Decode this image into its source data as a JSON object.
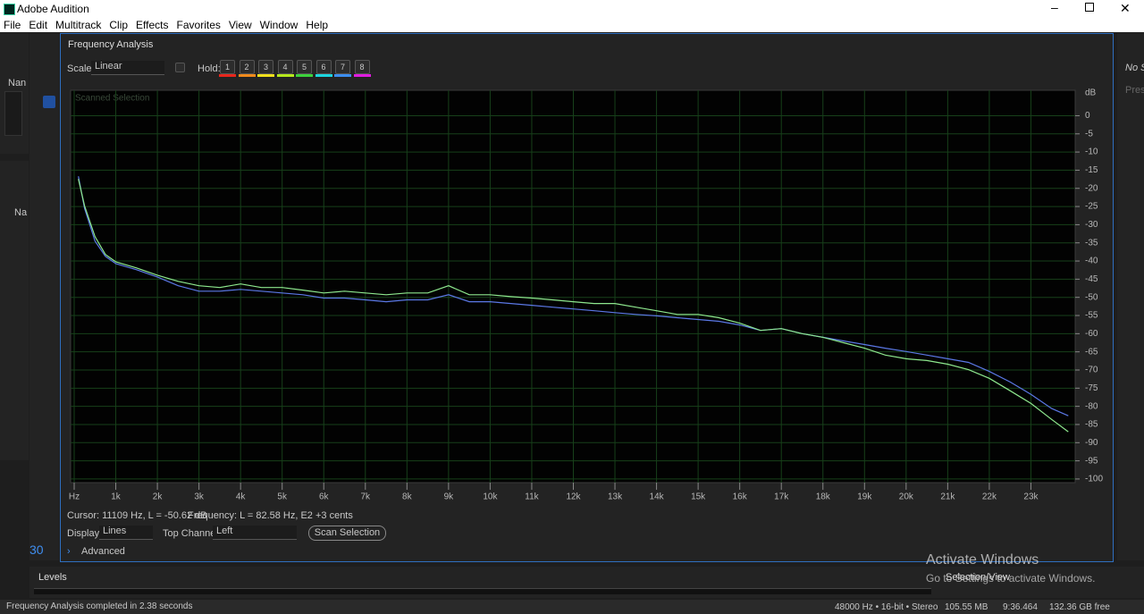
{
  "titlebar": {
    "app_title": "Adobe Audition"
  },
  "menu": [
    "File",
    "Edit",
    "Multitrack",
    "Clip",
    "Effects",
    "Favorites",
    "View",
    "Window",
    "Help"
  ],
  "left_panel": {
    "label_top": "Nan",
    "label_mid": "Na",
    "number": "30"
  },
  "right_panel": {
    "label_top": "No S",
    "label_mid": "Pres"
  },
  "panel": {
    "title": "Frequency Analysis",
    "scale_label": "Scale:",
    "scale_value": "Linear",
    "hold_label": "Hold:",
    "hold_buttons": [
      "1",
      "2",
      "3",
      "4",
      "5",
      "6",
      "7",
      "8"
    ],
    "hold_colors": [
      "#e8261c",
      "#f08a1c",
      "#f0e01c",
      "#b6e81c",
      "#3cd23c",
      "#1cd6e0",
      "#3c8ef0",
      "#e01ce0"
    ],
    "cursor_info": "Cursor: 11109 Hz, L = -50.62 dB",
    "frequency_info": "Frequency: L = 82.58 Hz, E2 +3 cents",
    "display_label": "Display:",
    "display_value": "Lines",
    "top_channel_label": "Top Channel:",
    "top_channel_value": "Left",
    "scan_button": "Scan Selection",
    "advanced": "Advanced"
  },
  "levels_panel": {
    "title": "Levels"
  },
  "selection_view": "Selection/View",
  "watermark": {
    "title": "Activate Windows",
    "subtitle": "Go to Settings to activate Windows."
  },
  "status_bar": {
    "message": "Frequency Analysis completed in 2.38 seconds",
    "format": "48000 Hz • 16-bit • Stereo",
    "size": "105.55 MB",
    "duration": "9:36.464",
    "free": "132.36 GB free"
  },
  "chart_data": {
    "type": "line",
    "subtitle": "Scanned Selection",
    "y_label": "dB",
    "grid": true,
    "xlim": [
      0,
      24000
    ],
    "ylim": [
      -101,
      7
    ],
    "xticks": [
      {
        "value": 0,
        "label": "Hz"
      },
      {
        "value": 1000,
        "label": "1k"
      },
      {
        "value": 2000,
        "label": "2k"
      },
      {
        "value": 3000,
        "label": "3k"
      },
      {
        "value": 4000,
        "label": "4k"
      },
      {
        "value": 5000,
        "label": "5k"
      },
      {
        "value": 6000,
        "label": "6k"
      },
      {
        "value": 7000,
        "label": "7k"
      },
      {
        "value": 8000,
        "label": "8k"
      },
      {
        "value": 9000,
        "label": "9k"
      },
      {
        "value": 10000,
        "label": "10k"
      },
      {
        "value": 11000,
        "label": "11k"
      },
      {
        "value": 12000,
        "label": "12k"
      },
      {
        "value": 13000,
        "label": "13k"
      },
      {
        "value": 14000,
        "label": "14k"
      },
      {
        "value": 15000,
        "label": "15k"
      },
      {
        "value": 16000,
        "label": "16k"
      },
      {
        "value": 17000,
        "label": "17k"
      },
      {
        "value": 18000,
        "label": "18k"
      },
      {
        "value": 19000,
        "label": "19k"
      },
      {
        "value": 20000,
        "label": "20k"
      },
      {
        "value": 21000,
        "label": "21k"
      },
      {
        "value": 22000,
        "label": "22k"
      },
      {
        "value": 23000,
        "label": "23k"
      }
    ],
    "yticks": [
      0,
      -5,
      -10,
      -15,
      -20,
      -25,
      -30,
      -35,
      -40,
      -45,
      -50,
      -55,
      -60,
      -65,
      -70,
      -75,
      -80,
      -85,
      -90,
      -95,
      -100
    ],
    "x": [
      100,
      250,
      500,
      750,
      1000,
      1500,
      2000,
      2500,
      3000,
      3500,
      4000,
      4500,
      5000,
      5500,
      6000,
      6500,
      7000,
      7500,
      8000,
      8500,
      9000,
      9500,
      10000,
      10500,
      11000,
      11500,
      12000,
      12500,
      13000,
      13500,
      14000,
      14500,
      15000,
      15500,
      16000,
      16500,
      17000,
      17500,
      18000,
      18500,
      19000,
      19500,
      20000,
      20500,
      21000,
      21500,
      22000,
      22500,
      23000,
      23500,
      23900
    ],
    "series": [
      {
        "color": "#5b78e6",
        "values": [
          -16.7,
          -25.5,
          -34.5,
          -38.7,
          -40.7,
          -42.4,
          -44.4,
          -46.8,
          -48.3,
          -48.3,
          -47.8,
          -48.3,
          -48.8,
          -49.3,
          -50.2,
          -50.2,
          -50.7,
          -51.2,
          -50.7,
          -50.7,
          -49.3,
          -51.2,
          -51.2,
          -51.7,
          -52.2,
          -52.7,
          -53.2,
          -53.7,
          -54.2,
          -54.7,
          -55.1,
          -55.6,
          -56.1,
          -56.6,
          -57.6,
          -59.1,
          -58.6,
          -60.0,
          -61.0,
          -62.0,
          -63.0,
          -64.0,
          -64.9,
          -65.9,
          -66.9,
          -67.9,
          -70.4,
          -73.3,
          -76.7,
          -80.6,
          -82.6
        ]
      },
      {
        "color": "#8ee88e",
        "values": [
          -17.4,
          -24.8,
          -33.3,
          -38.2,
          -40.2,
          -41.9,
          -43.9,
          -45.6,
          -46.8,
          -47.3,
          -46.3,
          -47.3,
          -47.3,
          -48.0,
          -48.8,
          -48.3,
          -48.8,
          -49.3,
          -48.8,
          -48.8,
          -46.8,
          -49.3,
          -49.3,
          -49.8,
          -50.2,
          -50.7,
          -51.2,
          -51.7,
          -51.7,
          -52.7,
          -53.7,
          -54.7,
          -54.7,
          -55.6,
          -57.1,
          -59.1,
          -58.6,
          -60.0,
          -61.0,
          -62.5,
          -64.0,
          -65.9,
          -66.9,
          -67.4,
          -68.4,
          -69.9,
          -72.3,
          -75.7,
          -79.2,
          -83.6,
          -87.0
        ]
      }
    ]
  }
}
